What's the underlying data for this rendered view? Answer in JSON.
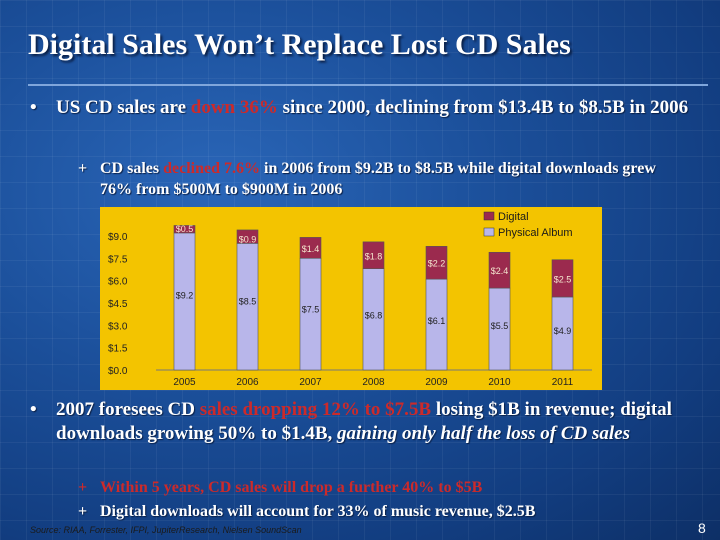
{
  "slide": {
    "title": "Digital Sales Won’t Replace Lost CD Sales",
    "bullet1": {
      "marker": "•",
      "pre": "US CD sales are ",
      "highlight": "down 36%",
      "post": " since 2000, declining from $13.4B to $8.5B in 2006"
    },
    "bullet2": {
      "marker": "+",
      "pre": "CD sales ",
      "highlight": "declined 7.6%",
      "post": " in 2006 from $9.2B to $8.5B while digital downloads grew 76% from $500M to $900M in 2006"
    },
    "bullet3": {
      "marker": "•",
      "pre": "2007 foresees CD ",
      "highlight": "sales dropping 12% to $7.5B",
      "mid": " losing $1B in revenue; digital downloads growing 50% to $1.4B, ",
      "emph": "gaining only half the loss of CD sales"
    },
    "bullet4": {
      "marker": "+",
      "text": "Within 5 years, CD sales will drop a further 40% to $5B"
    },
    "bullet5": {
      "marker": "+",
      "text": "Digital downloads will account for 33% of music revenue, $2.5B"
    },
    "source": "Source: RIAA, Forrester, IFPI, JupiterResearch, Nielsen SoundScan",
    "page_number": "8"
  },
  "colors": {
    "digital": "#9b2a4e",
    "physical": "#b8b6ea",
    "chart_bg": "#f3c400"
  },
  "chart_data": {
    "type": "bar",
    "stacked": true,
    "categories": [
      "2005",
      "2006",
      "2007",
      "2008",
      "2009",
      "2010",
      "2011"
    ],
    "series": [
      {
        "name": "Physical Album",
        "values": [
          9.2,
          8.5,
          7.5,
          6.8,
          6.1,
          5.5,
          4.9
        ],
        "labels": [
          "$9.2",
          "$8.5",
          "$7.5",
          "$6.8",
          "$6.1",
          "$5.5",
          "$4.9"
        ]
      },
      {
        "name": "Digital",
        "values": [
          0.5,
          0.9,
          1.4,
          1.8,
          2.2,
          2.4,
          2.5
        ],
        "labels": [
          "$0.5",
          "$0.9",
          "$1.4",
          "$1.8",
          "$2.2",
          "$2.4",
          "$2.5"
        ]
      }
    ],
    "y_ticks": [
      "$0.0",
      "$1.5",
      "$3.0",
      "$4.5",
      "$6.0",
      "$7.5",
      "$9.0"
    ],
    "ylim": [
      0,
      10
    ],
    "legend": [
      "Digital",
      "Physical Album"
    ],
    "legend_position": "top-right"
  }
}
